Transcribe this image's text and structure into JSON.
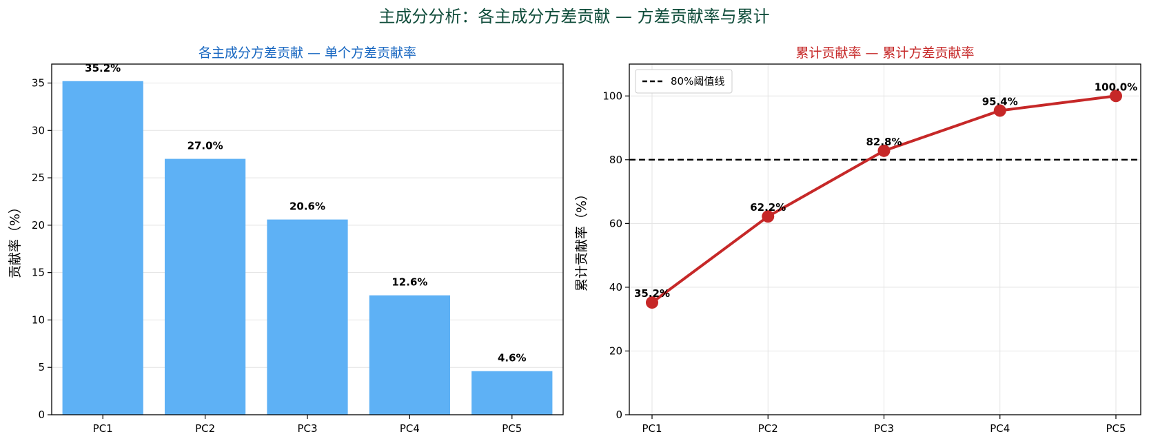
{
  "figure": {
    "title": "主成分分析：各主成分方差贡献 — 方差贡献率与累计",
    "title_color": "#0f4c3a"
  },
  "chart_data": [
    {
      "type": "bar",
      "title": "各主成分方差贡献 — 单个方差贡献率",
      "title_color": "#1565c0",
      "xlabel": "",
      "ylabel": "贡献率（%）",
      "categories": [
        "PC1",
        "PC2",
        "PC3",
        "PC4",
        "PC5"
      ],
      "values": [
        35.2,
        27.0,
        20.6,
        12.6,
        4.6
      ],
      "data_labels": [
        "35.2%",
        "27.0%",
        "20.6%",
        "12.6%",
        "4.6%"
      ],
      "ylim": [
        0,
        37
      ],
      "yticks": [
        0,
        5,
        10,
        15,
        20,
        25,
        30,
        35
      ],
      "bar_color": "#5eb1f5",
      "grid": "y"
    },
    {
      "type": "line",
      "title": "累计贡献率 — 累计方差贡献率",
      "title_color": "#c62828",
      "xlabel": "",
      "ylabel": "累计贡献率（%）",
      "categories": [
        "PC1",
        "PC2",
        "PC3",
        "PC4",
        "PC5"
      ],
      "values": [
        35.2,
        62.2,
        82.8,
        95.4,
        100.0
      ],
      "data_labels": [
        "35.2%",
        "62.2%",
        "82.8%",
        "95.4%",
        "100.0%"
      ],
      "ylim": [
        0,
        110
      ],
      "yticks": [
        0,
        20,
        40,
        60,
        80,
        100
      ],
      "line_color": "#c62828",
      "grid": "both",
      "threshold": {
        "value": 80,
        "label": "80%阈值线",
        "color": "#000000",
        "style": "dashed"
      },
      "legend": {
        "position": "top-left"
      }
    }
  ]
}
